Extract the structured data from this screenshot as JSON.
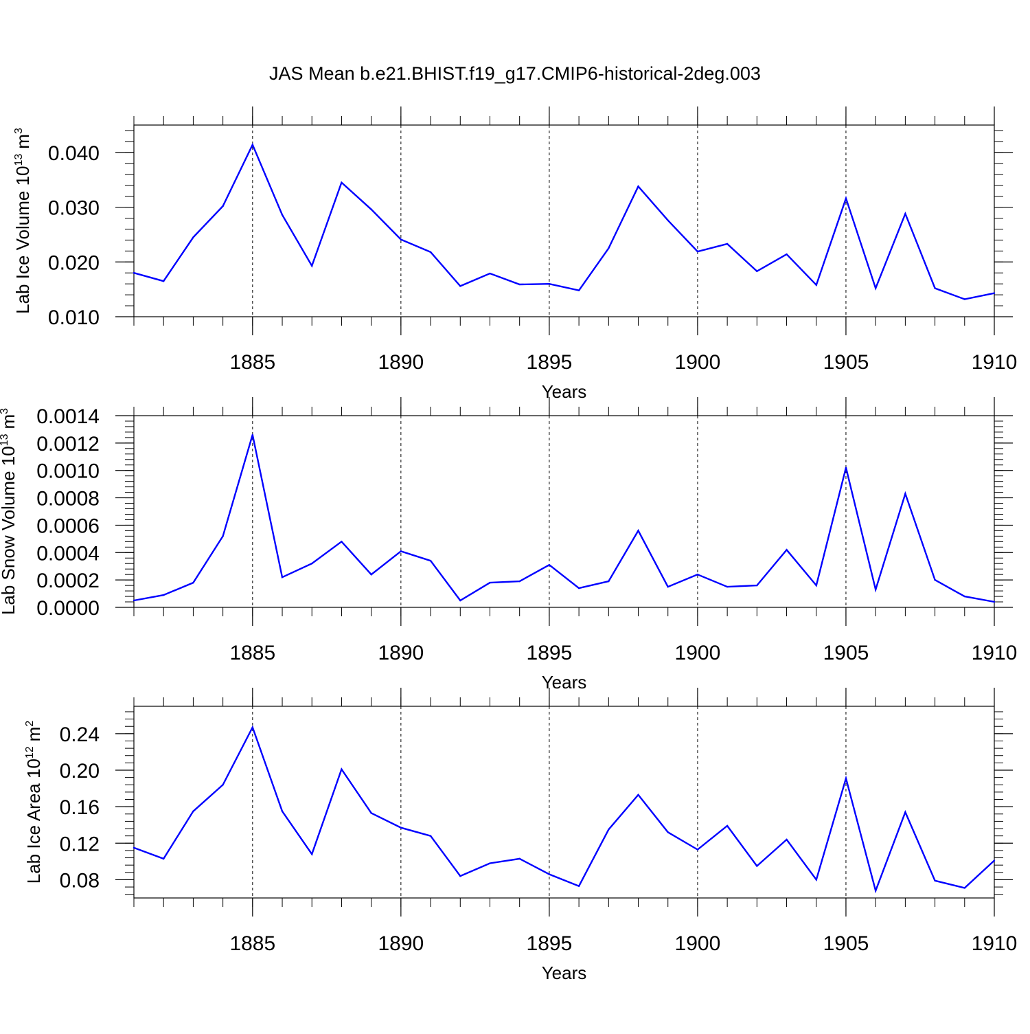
{
  "title": "JAS Mean b.e21.BHIST.f19_g17.CMIP6-historical-2deg.003",
  "line_color": "#0000ff",
  "chart_data": [
    {
      "type": "line",
      "xlabel": "Years",
      "ylabel": "Lab Ice Volume 10",
      "ylabel_exp": "13",
      "ylabel_unit": "m",
      "ylabel_unit_exp": "3",
      "xlim": [
        1881,
        1910
      ],
      "ylim": [
        0.01,
        0.045
      ],
      "yticks": [
        0.01,
        0.02,
        0.03,
        0.04
      ],
      "ytick_labels": [
        "0.010",
        "0.020",
        "0.030",
        "0.040"
      ],
      "xticks": [
        1885,
        1890,
        1895,
        1900,
        1905,
        1910
      ],
      "xtick_labels": [
        "1885",
        "1890",
        "1895",
        "1900",
        "1905",
        "1910"
      ],
      "grid": "vertical dashed at major x ticks",
      "x": [
        1881,
        1882,
        1883,
        1884,
        1885,
        1886,
        1887,
        1888,
        1889,
        1890,
        1891,
        1892,
        1893,
        1894,
        1895,
        1896,
        1897,
        1898,
        1899,
        1900,
        1901,
        1902,
        1903,
        1904,
        1905,
        1906,
        1907,
        1908,
        1909,
        1910
      ],
      "values": [
        0.018,
        0.0165,
        0.0245,
        0.0302,
        0.0414,
        0.0286,
        0.0193,
        0.0345,
        0.0296,
        0.0241,
        0.0218,
        0.0156,
        0.0179,
        0.0159,
        0.016,
        0.0148,
        0.0225,
        0.0338,
        0.0276,
        0.0219,
        0.0233,
        0.0183,
        0.0214,
        0.0158,
        0.0316,
        0.0152,
        0.0288,
        0.0152,
        0.0132,
        0.0143
      ]
    },
    {
      "type": "line",
      "xlabel": "Years",
      "ylabel": "Lab Snow Volume 10",
      "ylabel_exp": "13",
      "ylabel_unit": "m",
      "ylabel_unit_exp": "3",
      "xlim": [
        1881,
        1910
      ],
      "ylim": [
        0.0,
        0.0014
      ],
      "yticks": [
        0.0,
        0.0002,
        0.0004,
        0.0006,
        0.0008,
        0.001,
        0.0012,
        0.0014
      ],
      "ytick_labels": [
        "0.0000",
        "0.0002",
        "0.0004",
        "0.0006",
        "0.0008",
        "0.0010",
        "0.0012",
        "0.0014"
      ],
      "xticks": [
        1885,
        1890,
        1895,
        1900,
        1905,
        1910
      ],
      "xtick_labels": [
        "1885",
        "1890",
        "1895",
        "1900",
        "1905",
        "1910"
      ],
      "grid": "vertical dashed at major x ticks",
      "x": [
        1881,
        1882,
        1883,
        1884,
        1885,
        1886,
        1887,
        1888,
        1889,
        1890,
        1891,
        1892,
        1893,
        1894,
        1895,
        1896,
        1897,
        1898,
        1899,
        1900,
        1901,
        1902,
        1903,
        1904,
        1905,
        1906,
        1907,
        1908,
        1909,
        1910
      ],
      "values": [
        5e-05,
        9e-05,
        0.00018,
        0.00052,
        0.00126,
        0.00022,
        0.00032,
        0.00048,
        0.00024,
        0.00041,
        0.00034,
        5e-05,
        0.00018,
        0.00019,
        0.00031,
        0.00014,
        0.00019,
        0.00056,
        0.00015,
        0.00024,
        0.00015,
        0.00016,
        0.00042,
        0.00016,
        0.00102,
        0.00013,
        0.00083,
        0.0002,
        8e-05,
        4e-05
      ]
    },
    {
      "type": "line",
      "xlabel": "Years",
      "ylabel": "Lab Ice Area 10",
      "ylabel_exp": "12",
      "ylabel_unit": "m",
      "ylabel_unit_exp": "2",
      "xlim": [
        1881,
        1910
      ],
      "ylim": [
        0.06,
        0.27
      ],
      "yticks": [
        0.08,
        0.12,
        0.16,
        0.2,
        0.24
      ],
      "ytick_labels": [
        "0.08",
        "0.12",
        "0.16",
        "0.20",
        "0.24"
      ],
      "xticks": [
        1885,
        1890,
        1895,
        1900,
        1905,
        1910
      ],
      "xtick_labels": [
        "1885",
        "1890",
        "1895",
        "1900",
        "1905",
        "1910"
      ],
      "grid": "vertical dashed at major x ticks",
      "x": [
        1881,
        1882,
        1883,
        1884,
        1885,
        1886,
        1887,
        1888,
        1889,
        1890,
        1891,
        1892,
        1893,
        1894,
        1895,
        1896,
        1897,
        1898,
        1899,
        1900,
        1901,
        1902,
        1903,
        1904,
        1905,
        1906,
        1907,
        1908,
        1909,
        1910
      ],
      "values": [
        0.115,
        0.103,
        0.155,
        0.184,
        0.247,
        0.155,
        0.108,
        0.201,
        0.153,
        0.137,
        0.128,
        0.084,
        0.098,
        0.103,
        0.086,
        0.073,
        0.135,
        0.173,
        0.132,
        0.113,
        0.139,
        0.095,
        0.124,
        0.08,
        0.191,
        0.068,
        0.154,
        0.079,
        0.071,
        0.101
      ]
    }
  ]
}
